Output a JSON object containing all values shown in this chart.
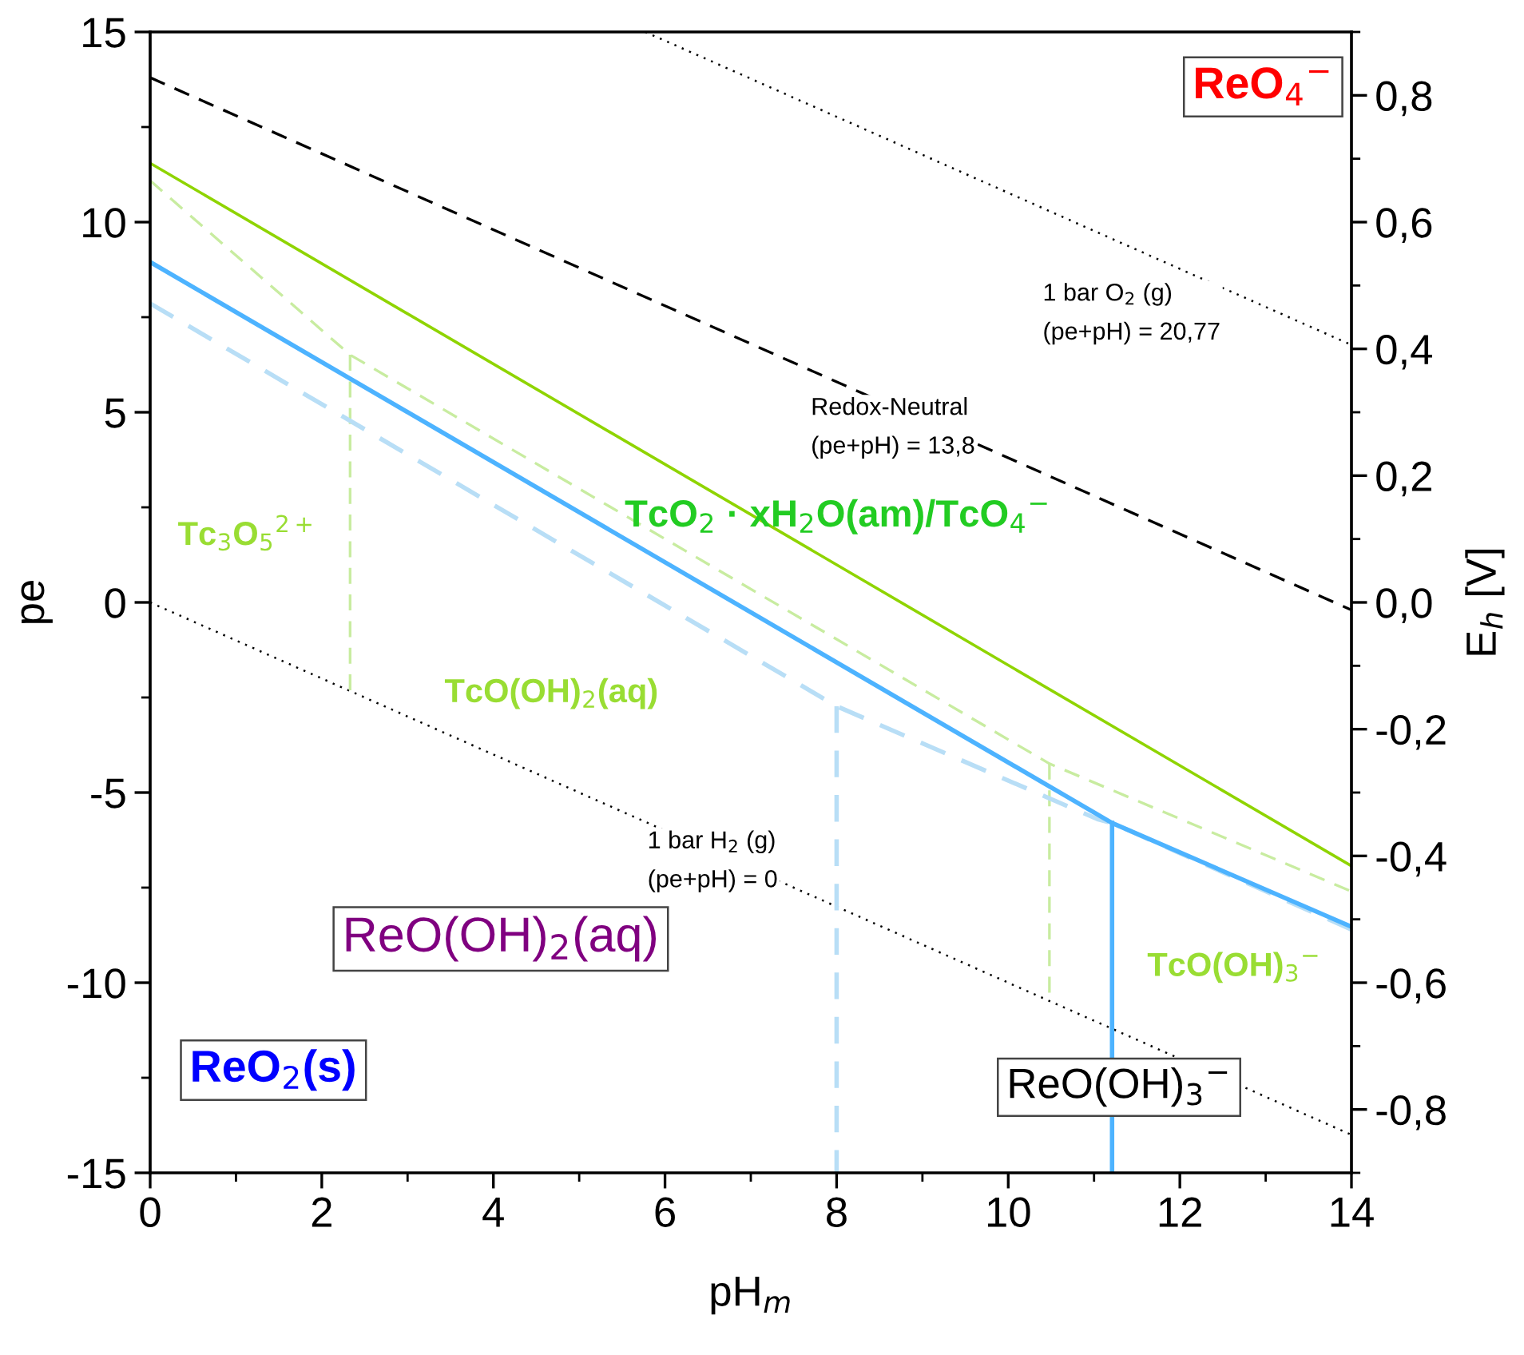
{
  "chart_data": {
    "type": "line",
    "xlabel": "pH$_{m}$",
    "ylabel": "pe",
    "y2label": "E$_{h}$ [V]",
    "xlim": [
      0,
      14
    ],
    "xticks": [
      0,
      2,
      4,
      6,
      8,
      10,
      12,
      14
    ],
    "ylim": [
      -15,
      15
    ],
    "yticks": [
      -15,
      -10,
      -5,
      0,
      5,
      10,
      15
    ],
    "y2lim": [
      -0.9,
      0.9
    ],
    "y2ticks": [
      {
        "value": -0.8,
        "label": "-0,8"
      },
      {
        "value": -0.6,
        "label": "-0,6"
      },
      {
        "value": -0.4,
        "label": "-0,4"
      },
      {
        "value": -0.2,
        "label": "-0,2"
      },
      {
        "value": 0.0,
        "label": "0,0"
      },
      {
        "value": 0.2,
        "label": "0,2"
      },
      {
        "value": 0.4,
        "label": "0,4"
      },
      {
        "value": 0.6,
        "label": "0,6"
      },
      {
        "value": 0.8,
        "label": "0,8"
      }
    ],
    "grid": false,
    "legend": false,
    "series": [
      {
        "x": [
          5.77,
          14
        ],
        "values": [
          15,
          6.77
        ],
        "color": "#000000",
        "line_style": "dotted"
      },
      {
        "x": [
          0,
          14
        ],
        "values": [
          13.8,
          -0.2
        ],
        "color": "#000000",
        "line_style": "dashed"
      },
      {
        "x": [
          0,
          14
        ],
        "values": [
          0,
          -14
        ],
        "color": "#000000",
        "line_style": "dotted"
      },
      {
        "x": [
          0,
          14
        ],
        "values": [
          11.55,
          -6.93
        ],
        "color": "#8fd400",
        "line_style": "solid"
      },
      {
        "x": [
          0,
          2.33,
          10.48,
          14
        ],
        "values": [
          11.09,
          6.51,
          -4.24,
          -7.6
        ],
        "color": "#c8eca0",
        "line_style": "dashed"
      },
      {
        "x": [
          2.33,
          2.33
        ],
        "values": [
          6.51,
          -2.31
        ],
        "color": "#c8eca0",
        "line_style": "dashed"
      },
      {
        "x": [
          10.48,
          10.48
        ],
        "values": [
          -4.24,
          -10.3
        ],
        "color": "#c8eca0",
        "line_style": "dashed"
      },
      {
        "x": [
          0,
          8,
          11.04,
          11.21,
          14
        ],
        "values": [
          7.86,
          -2.73,
          -5.7,
          -5.8,
          -8.6
        ],
        "color": "#b8def6",
        "line_style": "dashed"
      },
      {
        "x": [
          8,
          8
        ],
        "values": [
          -2.73,
          -15
        ],
        "color": "#b8def6",
        "line_style": "dashed"
      },
      {
        "x": [
          0,
          11.21,
          14
        ],
        "values": [
          8.95,
          -5.8,
          -8.53
        ],
        "color": "#4db3ff",
        "line_style": "solid"
      },
      {
        "x": [
          11.21,
          11.21
        ],
        "values": [
          -5.8,
          -15
        ],
        "color": "#4db3ff",
        "line_style": "solid"
      }
    ],
    "annotations": [
      "1 bar O$_{2}$ (g)\n(pe+pH) = 20,77",
      "Redox-Neutral\n(pe+pH) = 13,8",
      "1 bar H$_{2}$ (g)\n(pe+pH) = 0",
      "ReO$_{4}$$^{−}$",
      "Tc$_{3}$O$_{5}$$^{2+}$",
      "TcO$_{2}$ · xH$_{2}$O(am)/TcO$_{4}$$^{−}$",
      "TcO(OH)$_{2}$(aq)",
      "ReO(OH)$_{2}$(aq)",
      "TcO(OH)$_{3}$$^{−}$",
      "ReO$_{2}$(s)",
      "ReO(OH)$_{3}$$^{−}$"
    ]
  }
}
